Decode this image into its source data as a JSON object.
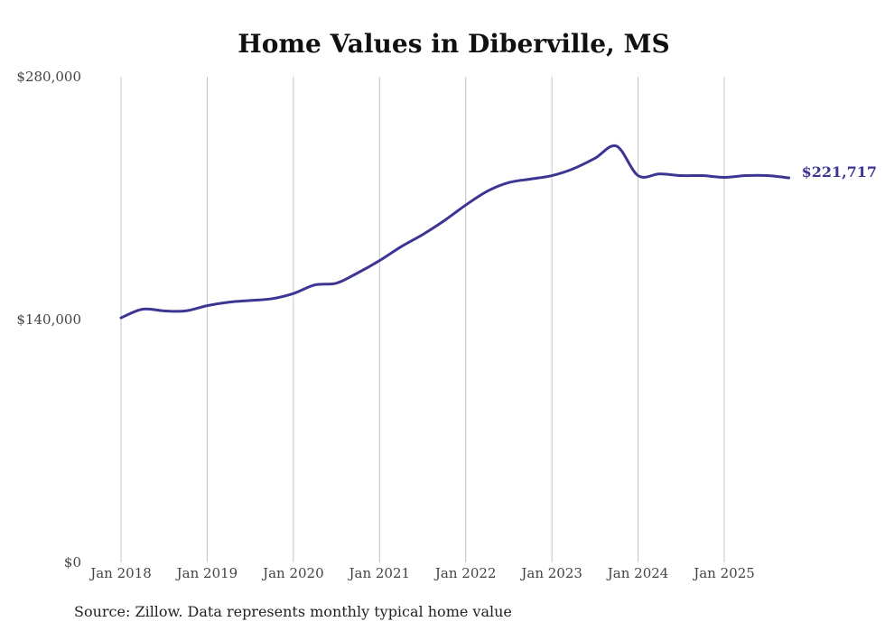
{
  "title": "Home Values in Diberville, MS",
  "source_note": "Source: Zillow. Data represents monthly typical home value",
  "colors": {
    "line": "#3d3593",
    "grid": "#c4c4c4",
    "text": "#444444"
  },
  "chart_data": {
    "type": "line",
    "title": "Home Values in Diberville, MS",
    "xlabel": "",
    "ylabel": "",
    "ylim": [
      0,
      280000
    ],
    "xlim": [
      "2018-01",
      "2025-12"
    ],
    "y_ticks": [
      0,
      140000,
      280000
    ],
    "y_tick_labels": [
      "$0",
      "$140,000",
      "$280,000"
    ],
    "x_ticks": [
      "2018-01",
      "2019-01",
      "2020-01",
      "2021-01",
      "2022-01",
      "2023-01",
      "2024-01",
      "2025-01"
    ],
    "x_tick_labels": [
      "Jan 2018",
      "Jan 2019",
      "Jan 2020",
      "Jan 2021",
      "Jan 2022",
      "Jan 2023",
      "Jan 2024",
      "Jan 2025"
    ],
    "grid": "vertical",
    "end_label": "$221,717",
    "series": [
      {
        "x": [
          "2018-01",
          "2018-04",
          "2018-07",
          "2018-10",
          "2019-01",
          "2019-04",
          "2019-07",
          "2019-10",
          "2020-01",
          "2020-04",
          "2020-07",
          "2020-10",
          "2021-01",
          "2021-04",
          "2021-07",
          "2021-10",
          "2022-01",
          "2022-04",
          "2022-07",
          "2022-10",
          "2023-01",
          "2023-04",
          "2023-07",
          "2023-10",
          "2024-01",
          "2024-04",
          "2024-07",
          "2024-10",
          "2025-01",
          "2025-04",
          "2025-07",
          "2025-10"
        ],
        "y": [
          141000,
          146000,
          145000,
          145000,
          148000,
          150000,
          151000,
          152000,
          155000,
          160000,
          161000,
          167000,
          174000,
          182000,
          189000,
          197000,
          206000,
          214000,
          219000,
          221000,
          223000,
          227000,
          233000,
          240000,
          223000,
          224000,
          223000,
          223000,
          222000,
          223000,
          223000,
          221717
        ]
      }
    ]
  }
}
